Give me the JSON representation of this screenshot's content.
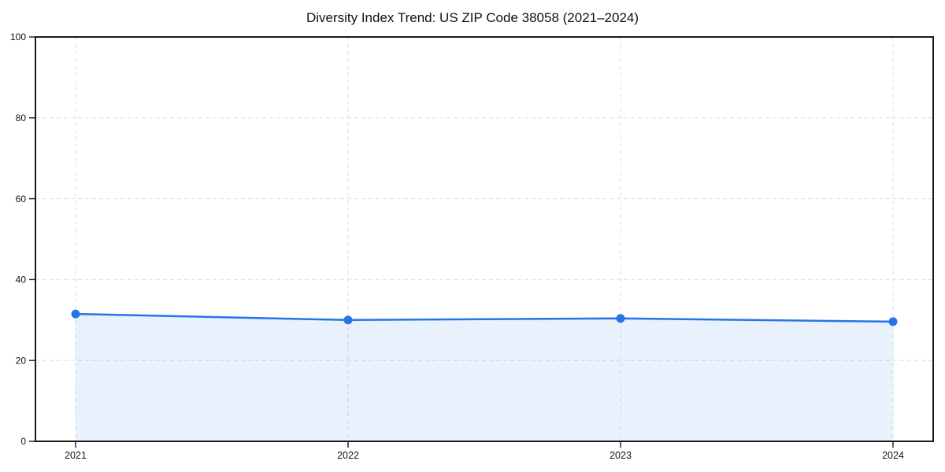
{
  "chart_data": {
    "type": "area",
    "title": "Diversity Index Trend: US ZIP Code 38058 (2021–2024)",
    "categories": [
      "2021",
      "2022",
      "2023",
      "2024"
    ],
    "series": [
      {
        "name": "Diversity Index",
        "values": [
          31.5,
          30.0,
          30.4,
          29.6
        ]
      }
    ],
    "xlabel": "",
    "ylabel": "",
    "ylim": [
      0,
      100
    ],
    "yticks": [
      0,
      20,
      40,
      60,
      80,
      100
    ],
    "grid": true,
    "grid_style": "dashed",
    "legend_position": "none",
    "line_color": "#2674e8",
    "fill_color": "#2674e8",
    "fill_opacity": 0.1,
    "marker": "circle",
    "axis_color": "#1a1a1a",
    "grid_color": "#dddddd",
    "tick_label_color": "#111111"
  }
}
